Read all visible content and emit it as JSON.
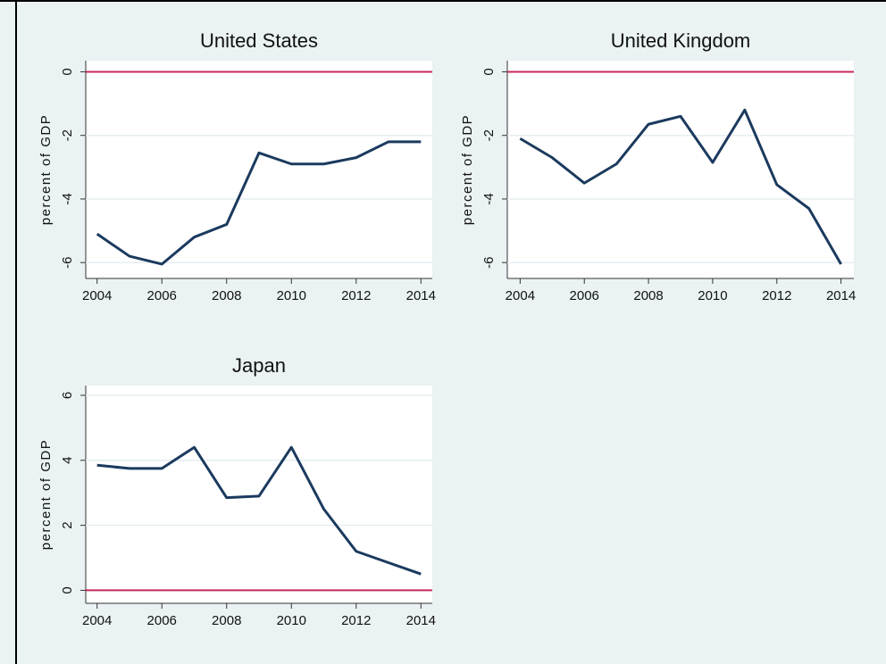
{
  "chart_data": [
    {
      "type": "line",
      "title": "United States",
      "y_label": "percent of GDP",
      "x": [
        2004,
        2005,
        2006,
        2007,
        2008,
        2009,
        2010,
        2011,
        2012,
        2013,
        2014
      ],
      "values": [
        -5.1,
        -5.8,
        -6.05,
        -5.2,
        -4.8,
        -2.55,
        -2.9,
        -2.9,
        -2.7,
        -2.2,
        -2.2
      ],
      "color": "#1b3a5e",
      "xlim": [
        2003.65,
        2014.35
      ],
      "xticks": [
        2004,
        2006,
        2008,
        2010,
        2012,
        2014
      ],
      "ylim": [
        -6.5,
        0.35
      ],
      "yticks": [
        0,
        -2,
        -4,
        -6
      ],
      "grid": true,
      "refline": 0,
      "refline_color": "#c8285a"
    },
    {
      "type": "line",
      "title": "United Kingdom",
      "y_label": "percent of GDP",
      "x": [
        2004,
        2005,
        2006,
        2007,
        2008,
        2009,
        2010,
        2011,
        2012,
        2013,
        2014
      ],
      "values": [
        -2.1,
        -2.7,
        -3.5,
        -2.9,
        -1.65,
        -1.4,
        -2.85,
        -1.2,
        -3.55,
        -4.3,
        -6.05
      ],
      "color": "#1b3a5e",
      "xlim": [
        2003.6,
        2014.4
      ],
      "xticks": [
        2004,
        2006,
        2008,
        2010,
        2012,
        2014
      ],
      "ylim": [
        -6.5,
        0.35
      ],
      "yticks": [
        0,
        -2,
        -4,
        -6
      ],
      "grid": true,
      "refline": 0,
      "refline_color": "#c8285a"
    },
    {
      "type": "line",
      "title": "Japan",
      "y_label": "percent of GDP",
      "x": [
        2004,
        2005,
        2006,
        2007,
        2008,
        2009,
        2010,
        2011,
        2012,
        2013,
        2014
      ],
      "values": [
        3.85,
        3.75,
        3.75,
        4.4,
        2.85,
        2.9,
        4.4,
        2.5,
        1.2,
        0.85,
        0.5
      ],
      "color": "#1b3a5e",
      "xlim": [
        2003.65,
        2014.35
      ],
      "xticks": [
        2004,
        2006,
        2008,
        2010,
        2012,
        2014
      ],
      "ylim": [
        -0.4,
        6.3
      ],
      "yticks": [
        0,
        2,
        4,
        6
      ],
      "grid": true,
      "refline": 0,
      "refline_color": "#c8285a"
    }
  ]
}
